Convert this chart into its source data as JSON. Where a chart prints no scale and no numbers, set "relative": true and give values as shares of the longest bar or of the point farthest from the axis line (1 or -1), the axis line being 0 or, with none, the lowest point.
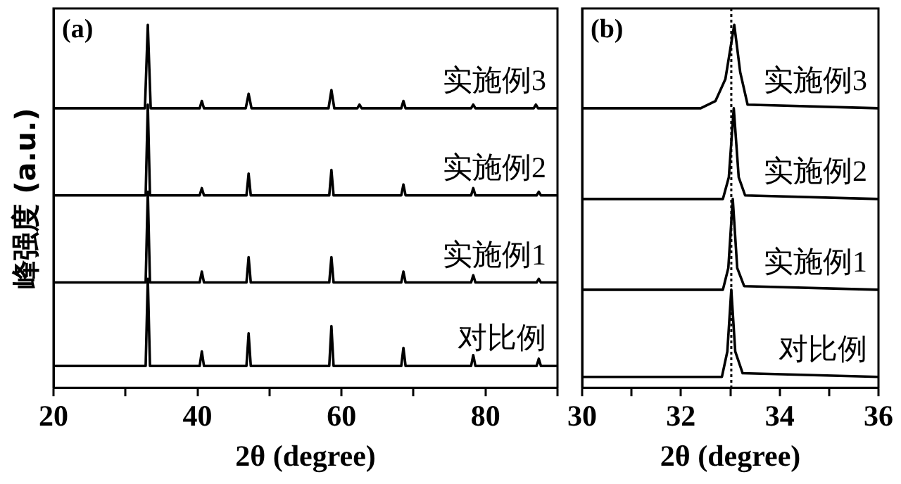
{
  "chart_data": [
    {
      "type": "line",
      "relative": true,
      "xlabel": "2θ (degree)",
      "ylabel": "峰强度 (a.u.)",
      "annotations": [
        "(a)"
      ],
      "xlim": [
        20,
        90
      ],
      "xticks": [
        20,
        {
          "value": 30,
          "label": null
        },
        40,
        {
          "value": 50,
          "label": null
        },
        60,
        {
          "value": 70,
          "label": null
        },
        80,
        {
          "value": 90,
          "label": null
        }
      ],
      "tick_labels": "x",
      "grid": false,
      "legend": false,
      "marker": "none",
      "line_style": "solid",
      "series": [
        {
          "name": "实施例3",
          "color": "#000000",
          "x": [
            20,
            32.7,
            33.1,
            33.5,
            40.3,
            40.6,
            40.9,
            46.7,
            47.1,
            47.5,
            58.2,
            58.6,
            59.0,
            62.2,
            62.5,
            62.8,
            68.3,
            68.6,
            68.9,
            78.0,
            78.3,
            78.6,
            86.7,
            87.0,
            87.3,
            90
          ],
          "values": [
            0.77,
            0.77,
            1.0,
            0.77,
            0.77,
            0.79,
            0.77,
            0.77,
            0.81,
            0.77,
            0.77,
            0.82,
            0.77,
            0.77,
            0.78,
            0.77,
            0.77,
            0.79,
            0.77,
            0.77,
            0.78,
            0.77,
            0.77,
            0.78,
            0.77,
            0.77
          ]
        },
        {
          "name": "实施例2",
          "color": "#000000",
          "x": [
            20,
            32.8,
            33.1,
            33.4,
            40.3,
            40.6,
            40.9,
            46.8,
            47.1,
            47.4,
            58.3,
            58.6,
            58.9,
            68.3,
            68.6,
            68.9,
            78.0,
            78.3,
            78.6,
            87.1,
            87.4,
            87.7,
            90
          ],
          "values": [
            0.53,
            0.53,
            0.78,
            0.53,
            0.53,
            0.55,
            0.53,
            0.53,
            0.59,
            0.53,
            0.53,
            0.6,
            0.53,
            0.53,
            0.56,
            0.53,
            0.53,
            0.55,
            0.53,
            0.53,
            0.54,
            0.53,
            0.53
          ]
        },
        {
          "name": "实施例1",
          "color": "#000000",
          "x": [
            20,
            32.8,
            33.1,
            33.4,
            40.3,
            40.6,
            40.9,
            46.8,
            47.1,
            47.4,
            58.3,
            58.6,
            58.9,
            68.3,
            68.6,
            68.9,
            78.0,
            78.3,
            78.6,
            87.1,
            87.4,
            87.7,
            90
          ],
          "values": [
            0.29,
            0.29,
            0.54,
            0.29,
            0.29,
            0.32,
            0.29,
            0.29,
            0.36,
            0.29,
            0.29,
            0.36,
            0.29,
            0.29,
            0.32,
            0.29,
            0.29,
            0.31,
            0.29,
            0.29,
            0.3,
            0.29,
            0.29
          ]
        },
        {
          "name": "对比例",
          "color": "#000000",
          "x": [
            20,
            32.8,
            33.1,
            33.4,
            40.3,
            40.6,
            40.9,
            46.8,
            47.1,
            47.4,
            58.3,
            58.6,
            58.9,
            68.3,
            68.6,
            68.9,
            78.0,
            78.3,
            78.6,
            87.1,
            87.4,
            87.7,
            90
          ],
          "values": [
            0.06,
            0.06,
            0.3,
            0.06,
            0.06,
            0.1,
            0.06,
            0.06,
            0.15,
            0.06,
            0.06,
            0.17,
            0.06,
            0.06,
            0.11,
            0.06,
            0.06,
            0.09,
            0.06,
            0.06,
            0.08,
            0.06,
            0.06
          ]
        }
      ]
    },
    {
      "type": "line",
      "relative": true,
      "xlabel": "2θ (degree)",
      "annotations": [
        "(b)"
      ],
      "xlim": [
        30,
        36
      ],
      "xticks": [
        30,
        {
          "value": 31,
          "label": null
        },
        32,
        {
          "value": 33,
          "label": null
        },
        34,
        {
          "value": 35,
          "label": null
        },
        36
      ],
      "tick_labels": "x",
      "grid": false,
      "legend": false,
      "marker": "none",
      "line_style": "solid",
      "ref_lines": [
        {
          "axis": "x",
          "value": 33.02,
          "label": null,
          "color": "#000000",
          "line_style": "dotted"
        }
      ],
      "series": [
        {
          "name": "实施例3",
          "color": "#000000",
          "x": [
            30,
            32.4,
            32.7,
            32.9,
            33.08,
            33.2,
            33.35,
            36
          ],
          "values": [
            0.77,
            0.77,
            0.79,
            0.85,
            1.0,
            0.87,
            0.78,
            0.77
          ]
        },
        {
          "name": "实施例2",
          "color": "#000000",
          "x": [
            30,
            32.85,
            32.97,
            33.07,
            33.17,
            33.3,
            36
          ],
          "values": [
            0.52,
            0.52,
            0.58,
            0.77,
            0.58,
            0.53,
            0.52
          ]
        },
        {
          "name": "实施例1",
          "color": "#000000",
          "x": [
            30,
            32.85,
            32.96,
            33.05,
            33.14,
            33.28,
            36
          ],
          "values": [
            0.27,
            0.27,
            0.33,
            0.52,
            0.33,
            0.28,
            0.27
          ]
        },
        {
          "name": "对比例",
          "color": "#000000",
          "x": [
            30,
            32.83,
            32.94,
            33.02,
            33.1,
            33.25,
            36
          ],
          "values": [
            0.03,
            0.03,
            0.1,
            0.27,
            0.1,
            0.04,
            0.03
          ]
        }
      ]
    }
  ]
}
